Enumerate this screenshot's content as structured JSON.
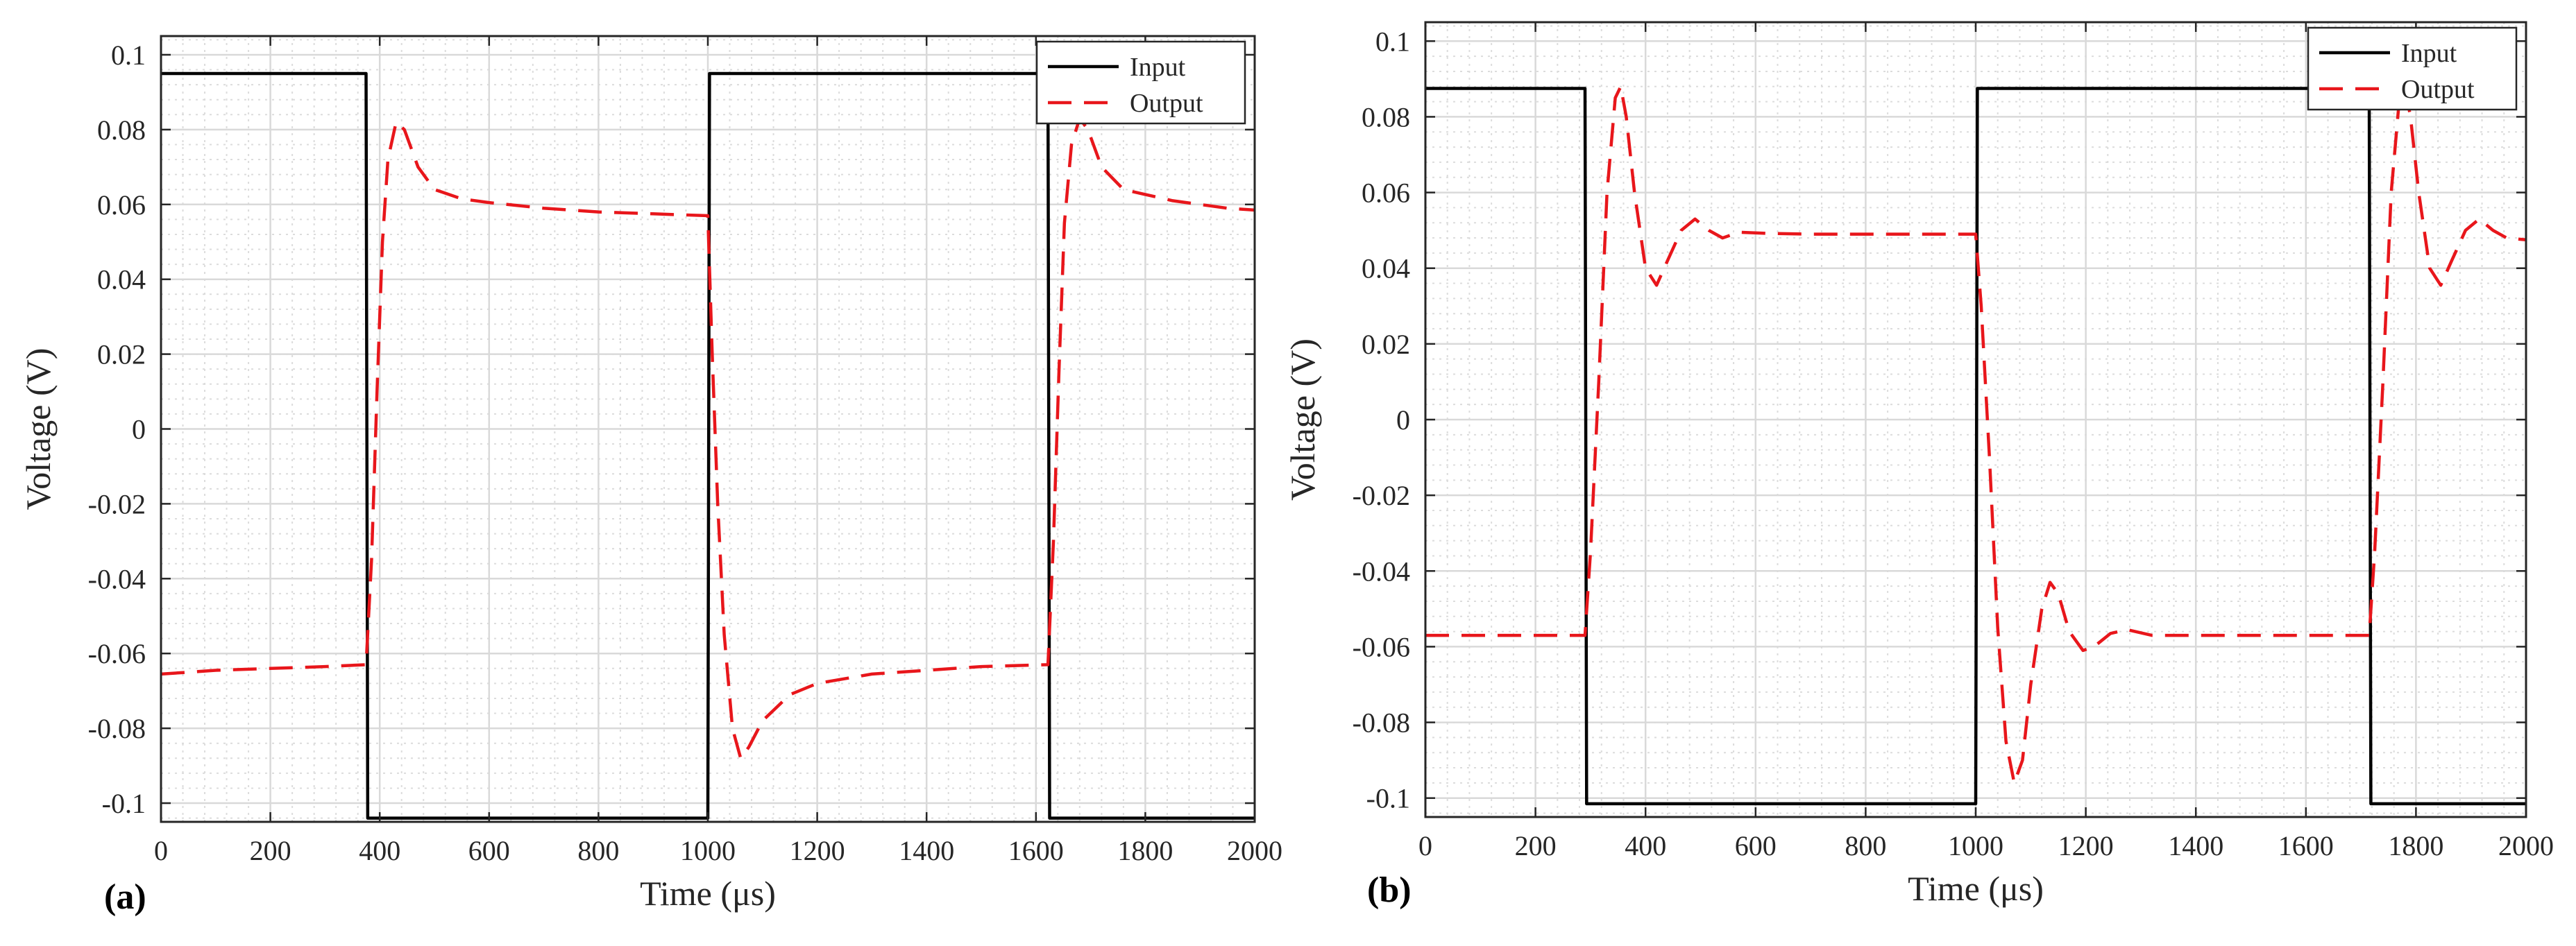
{
  "chart_data": [
    {
      "panel": "(a)",
      "type": "line",
      "xlabel": "Time (μs)",
      "ylabel": "Voltage (V)",
      "xlim": [
        0,
        2000
      ],
      "ylim": [
        -0.105,
        0.105
      ],
      "xticks": [
        0,
        200,
        400,
        600,
        800,
        1000,
        1200,
        1400,
        1600,
        1800,
        2000
      ],
      "yticks": [
        -0.1,
        -0.08,
        -0.06,
        -0.04,
        -0.02,
        0,
        0.02,
        0.04,
        0.06,
        0.08,
        0.1
      ],
      "ytick_labels": [
        "-0.1",
        "-0.08",
        "-0.06",
        "-0.04",
        "-0.02",
        "0",
        "0.02",
        "0.04",
        "0.06",
        "0.08",
        "0.1"
      ],
      "grid": true,
      "legend_position": "top-right",
      "series": [
        {
          "name": "Input",
          "style": "solid",
          "color": "#000000",
          "points": [
            [
              0,
              0.095
            ],
            [
              375,
              0.095
            ],
            [
              378,
              -0.104
            ],
            [
              1000,
              -0.104
            ],
            [
              1003,
              0.095
            ],
            [
              1622,
              0.095
            ],
            [
              1625,
              -0.104
            ],
            [
              2000,
              -0.104
            ]
          ]
        },
        {
          "name": "Output",
          "style": "dashed",
          "color": "#e8161b",
          "points": [
            [
              0,
              -0.0655
            ],
            [
              100,
              -0.0645
            ],
            [
              200,
              -0.064
            ],
            [
              300,
              -0.0635
            ],
            [
              375,
              -0.063
            ],
            [
              385,
              -0.035
            ],
            [
              395,
              0.01
            ],
            [
              405,
              0.05
            ],
            [
              415,
              0.072
            ],
            [
              430,
              0.082
            ],
            [
              445,
              0.08
            ],
            [
              470,
              0.07
            ],
            [
              500,
              0.064
            ],
            [
              550,
              0.0615
            ],
            [
              600,
              0.0605
            ],
            [
              700,
              0.059
            ],
            [
              800,
              0.058
            ],
            [
              900,
              0.0575
            ],
            [
              1000,
              0.057
            ],
            [
              1008,
              0.02
            ],
            [
              1018,
              -0.02
            ],
            [
              1030,
              -0.055
            ],
            [
              1045,
              -0.08
            ],
            [
              1060,
              -0.088
            ],
            [
              1075,
              -0.085
            ],
            [
              1100,
              -0.078
            ],
            [
              1150,
              -0.071
            ],
            [
              1200,
              -0.068
            ],
            [
              1300,
              -0.0655
            ],
            [
              1400,
              -0.0645
            ],
            [
              1500,
              -0.0635
            ],
            [
              1622,
              -0.063
            ],
            [
              1632,
              -0.03
            ],
            [
              1642,
              0.015
            ],
            [
              1652,
              0.055
            ],
            [
              1665,
              0.076
            ],
            [
              1680,
              0.083
            ],
            [
              1695,
              0.08
            ],
            [
              1720,
              0.07
            ],
            [
              1760,
              0.064
            ],
            [
              1850,
              0.061
            ],
            [
              1950,
              0.059
            ],
            [
              2000,
              0.0585
            ]
          ]
        }
      ]
    },
    {
      "panel": "(b)",
      "type": "line",
      "xlabel": "Time (μs)",
      "ylabel": "Voltage (V)",
      "xlim": [
        0,
        2000
      ],
      "ylim": [
        -0.105,
        0.105
      ],
      "xticks": [
        0,
        200,
        400,
        600,
        800,
        1000,
        1200,
        1400,
        1600,
        1800,
        2000
      ],
      "yticks": [
        -0.1,
        -0.08,
        -0.06,
        -0.04,
        -0.02,
        0,
        0.02,
        0.04,
        0.06,
        0.08,
        0.1
      ],
      "ytick_labels": [
        "-0.1",
        "-0.08",
        "-0.06",
        "-0.04",
        "-0.02",
        "0",
        "0.02",
        "0.04",
        "0.06",
        "0.08",
        "0.1"
      ],
      "grid": true,
      "legend_position": "top-right",
      "series": [
        {
          "name": "Input",
          "style": "solid",
          "color": "#000000",
          "points": [
            [
              0,
              0.0875
            ],
            [
              290,
              0.0875
            ],
            [
              293,
              -0.1015
            ],
            [
              1000,
              -0.1015
            ],
            [
              1003,
              0.0875
            ],
            [
              1715,
              0.0875
            ],
            [
              1718,
              -0.1015
            ],
            [
              2000,
              -0.1015
            ]
          ]
        },
        {
          "name": "Output",
          "style": "dashed",
          "color": "#e8161b",
          "points": [
            [
              0,
              -0.057
            ],
            [
              290,
              -0.057
            ],
            [
              300,
              -0.035
            ],
            [
              315,
              0.01
            ],
            [
              330,
              0.06
            ],
            [
              345,
              0.085
            ],
            [
              355,
              0.088
            ],
            [
              365,
              0.08
            ],
            [
              380,
              0.06
            ],
            [
              400,
              0.04
            ],
            [
              420,
              0.0355
            ],
            [
              440,
              0.042
            ],
            [
              465,
              0.05
            ],
            [
              490,
              0.053
            ],
            [
              515,
              0.05
            ],
            [
              540,
              0.048
            ],
            [
              570,
              0.0495
            ],
            [
              620,
              0.0492
            ],
            [
              700,
              0.049
            ],
            [
              800,
              0.049
            ],
            [
              900,
              0.049
            ],
            [
              1000,
              0.049
            ],
            [
              1010,
              0.03
            ],
            [
              1025,
              -0.01
            ],
            [
              1040,
              -0.055
            ],
            [
              1055,
              -0.085
            ],
            [
              1070,
              -0.096
            ],
            [
              1085,
              -0.09
            ],
            [
              1100,
              -0.07
            ],
            [
              1120,
              -0.05
            ],
            [
              1135,
              -0.043
            ],
            [
              1150,
              -0.046
            ],
            [
              1170,
              -0.056
            ],
            [
              1195,
              -0.061
            ],
            [
              1215,
              -0.06
            ],
            [
              1245,
              -0.0565
            ],
            [
              1275,
              -0.0555
            ],
            [
              1320,
              -0.057
            ],
            [
              1400,
              -0.057
            ],
            [
              1500,
              -0.057
            ],
            [
              1715,
              -0.057
            ],
            [
              1725,
              -0.035
            ],
            [
              1740,
              0.01
            ],
            [
              1755,
              0.06
            ],
            [
              1770,
              0.085
            ],
            [
              1780,
              0.088
            ],
            [
              1790,
              0.08
            ],
            [
              1805,
              0.06
            ],
            [
              1825,
              0.04
            ],
            [
              1845,
              0.0355
            ],
            [
              1865,
              0.042
            ],
            [
              1890,
              0.05
            ],
            [
              1915,
              0.053
            ],
            [
              1940,
              0.05
            ],
            [
              1965,
              0.048
            ],
            [
              2000,
              0.0475
            ]
          ]
        }
      ]
    }
  ]
}
